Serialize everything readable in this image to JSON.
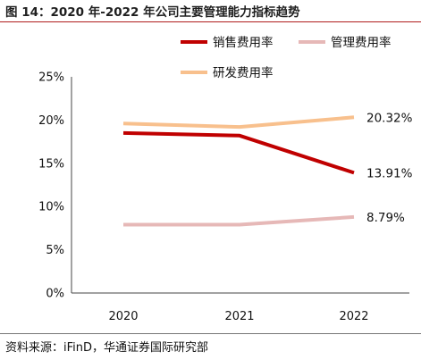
{
  "figure": {
    "title": "图 14：2020 年-2022 年公司主要管理能力指标趋势",
    "source": "资料来源：iFinD，华通证券国际研究部"
  },
  "chart_data": {
    "type": "line",
    "title": "",
    "xlabel": "",
    "ylabel": "",
    "categories": [
      "2020",
      "2021",
      "2022"
    ],
    "ylim": [
      0,
      25
    ],
    "yticks": [
      0,
      5,
      10,
      15,
      20,
      25
    ],
    "ytick_labels": [
      "0%",
      "5%",
      "10%",
      "15%",
      "20%",
      "25%"
    ],
    "grid": false,
    "legend_position": "top",
    "series": [
      {
        "name": "销售费用率",
        "values": [
          18.5,
          18.2,
          13.91
        ],
        "color": "#c00000",
        "end_label": "13.91%"
      },
      {
        "name": "管理费用率",
        "values": [
          7.9,
          7.9,
          8.79
        ],
        "color": "#e6b8b7",
        "end_label": "8.79%"
      },
      {
        "name": "研发费用率",
        "values": [
          19.6,
          19.2,
          20.32
        ],
        "color": "#f8c08d",
        "end_label": "20.32%"
      }
    ]
  }
}
